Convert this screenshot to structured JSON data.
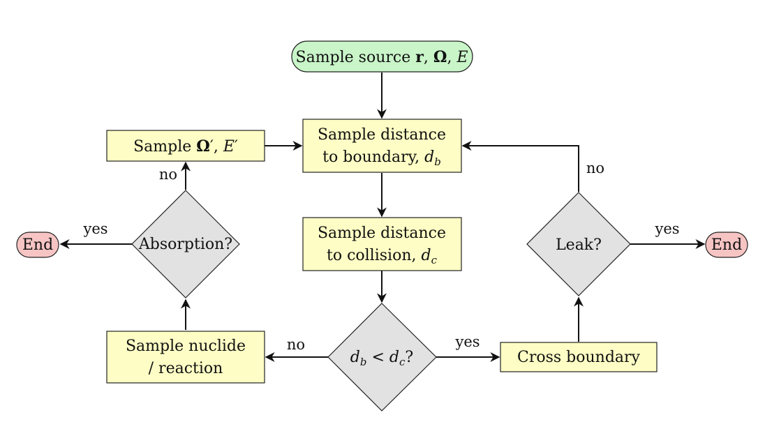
{
  "colors": {
    "start": "#c9f5c9",
    "process": "#fdfdc5",
    "decision": "#e2e2e2",
    "end": "#f7c4c4",
    "stroke": "#222222"
  },
  "nodes": {
    "start": {
      "prefix": "Sample source ",
      "r": "r",
      "omega": "Ω",
      "e": "E",
      "sep": ", "
    },
    "boundary": {
      "line1": "Sample distance",
      "line2_text": "to boundary, ",
      "line2_var": "d",
      "line2_sub": "b"
    },
    "collision": {
      "line1": "Sample distance",
      "line2_text": "to collision, ",
      "line2_var": "d",
      "line2_sub": "c"
    },
    "compare": {
      "var1": "d",
      "sub1": "b",
      "op": " < ",
      "var2": "d",
      "sub2": "c",
      "q": "?"
    },
    "cross": {
      "label": "Cross boundary"
    },
    "leak": {
      "label": "Leak?"
    },
    "nuclide": {
      "line1": "Sample nuclide",
      "line2": "/ reaction"
    },
    "absorption": {
      "label": "Absorption?"
    },
    "sample_omega": {
      "prefix": "Sample ",
      "omega": "Ω",
      "prime": "′",
      "e": "E",
      "sep": ", "
    },
    "end_left": {
      "label": "End"
    },
    "end_right": {
      "label": "End"
    }
  },
  "edges": {
    "compare_yes": "yes",
    "compare_no": "no",
    "leak_yes": "yes",
    "leak_no": "no",
    "absorption_yes": "yes",
    "absorption_no": "no"
  }
}
